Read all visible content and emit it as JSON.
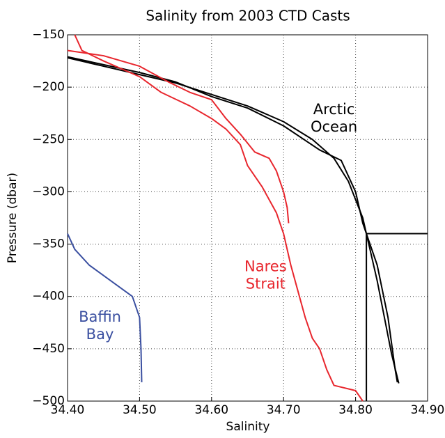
{
  "chart_data": {
    "type": "line",
    "title": "Salinity from 2003 CTD Casts",
    "xlabel": "Salinity",
    "ylabel": "Pressure (dbar)",
    "xlim": [
      34.4,
      34.9
    ],
    "ylim": [
      -500,
      -150
    ],
    "xticks": [
      {
        "value": 34.4,
        "label": "34.40"
      },
      {
        "value": 34.5,
        "label": "34.50"
      },
      {
        "value": 34.6,
        "label": "34.60"
      },
      {
        "value": 34.7,
        "label": "34.70"
      },
      {
        "value": 34.8,
        "label": "34.80"
      },
      {
        "value": 34.9,
        "label": "34.90"
      }
    ],
    "yticks": [
      {
        "value": -500,
        "label": "−500"
      },
      {
        "value": -450,
        "label": "−450"
      },
      {
        "value": -400,
        "label": "−400"
      },
      {
        "value": -350,
        "label": "−350"
      },
      {
        "value": -300,
        "label": "−300"
      },
      {
        "value": -250,
        "label": "−250"
      },
      {
        "value": -200,
        "label": "−200"
      },
      {
        "value": -150,
        "label": "−150"
      }
    ],
    "grid": true,
    "series": [
      {
        "color": "#000000",
        "x": [
          34.4,
          34.45,
          34.5,
          34.55,
          34.6,
          34.65,
          34.7,
          34.74,
          34.77,
          34.79,
          34.81,
          34.82,
          34.83,
          34.84,
          34.85,
          34.86
        ],
        "values": [
          -172,
          -180,
          -188,
          -196,
          -207,
          -218,
          -233,
          -250,
          -268,
          -290,
          -325,
          -355,
          -385,
          -420,
          -455,
          -483
        ]
      },
      {
        "color": "#000000",
        "x": [
          34.4,
          34.5,
          34.55,
          34.6,
          34.65,
          34.7,
          34.75,
          34.78,
          34.8,
          34.81,
          34.83,
          34.845,
          34.855,
          34.858
        ],
        "values": [
          -171,
          -186,
          -195,
          -209,
          -220,
          -237,
          -260,
          -270,
          -300,
          -330,
          -370,
          -420,
          -470,
          -482
        ]
      },
      {
        "color": "#000000",
        "x": [
          34.815,
          34.815,
          34.9
        ],
        "values": [
          -500,
          -340,
          -340
        ]
      },
      {
        "color": "#e8262d",
        "x": [
          34.4,
          34.45,
          34.5,
          34.54,
          34.57,
          34.6,
          34.62,
          34.64,
          34.66,
          34.68,
          34.69,
          34.7,
          34.705,
          34.707
        ],
        "values": [
          -165,
          -170,
          -180,
          -195,
          -205,
          -212,
          -230,
          -245,
          -262,
          -268,
          -280,
          -300,
          -315,
          -330
        ]
      },
      {
        "color": "#e8262d",
        "x": [
          34.41,
          34.42,
          34.45,
          34.5,
          34.53,
          34.57,
          34.6,
          34.62,
          34.64,
          34.65,
          34.67,
          34.69,
          34.7,
          34.71,
          34.72,
          34.73,
          34.74,
          34.75,
          34.76,
          34.77,
          34.8,
          34.81
        ],
        "values": [
          -150,
          -165,
          -175,
          -190,
          -205,
          -218,
          -230,
          -240,
          -255,
          -275,
          -295,
          -320,
          -340,
          -370,
          -395,
          -420,
          -440,
          -450,
          -470,
          -485,
          -490,
          -500
        ]
      },
      {
        "color": "#3a4fa0",
        "x": [
          34.4,
          34.41,
          34.43,
          34.45,
          34.47,
          34.49,
          34.5,
          34.502,
          34.503
        ],
        "values": [
          -340,
          -355,
          -370,
          -380,
          -390,
          -400,
          -420,
          -450,
          -482
        ]
      }
    ],
    "annotations": [
      {
        "lines": [
          "Arctic",
          "Ocean"
        ],
        "color": "#000000",
        "x": 34.77,
        "y": -222
      },
      {
        "lines": [
          "Nares",
          "Strait"
        ],
        "color": "#e8262d",
        "x": 34.675,
        "y": -372
      },
      {
        "lines": [
          "Baffin",
          "Bay"
        ],
        "color": "#3a4fa0",
        "x": 34.445,
        "y": -420
      }
    ]
  }
}
